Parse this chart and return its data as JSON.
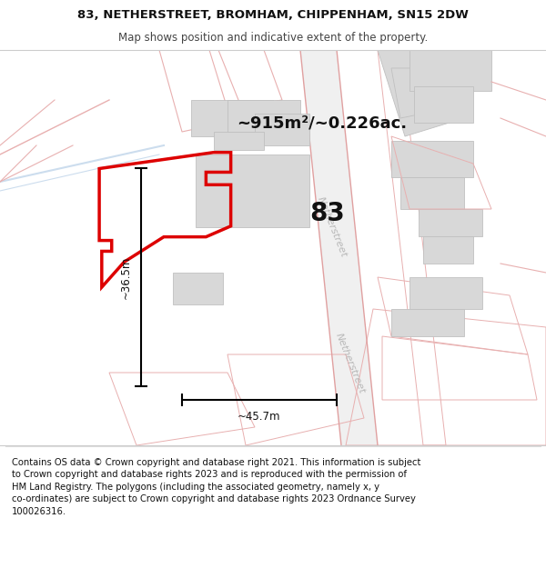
{
  "title_line1": "83, NETHERSTREET, BROMHAM, CHIPPENHAM, SN15 2DW",
  "title_line2": "Map shows position and indicative extent of the property.",
  "area_label": "~915m²/~0.226ac.",
  "plot_number": "83",
  "dim_width_label": "~45.7m",
  "dim_height_label": "~36.5m",
  "road_label": "Netherstreet",
  "footer_line1": "Contains OS data © Crown copyright and database right 2021. This information is subject",
  "footer_line2": "to Crown copyright and database rights 2023 and is reproduced with the permission of",
  "footer_line3": "HM Land Registry. The polygons (including the associated geometry, namely x, y",
  "footer_line4": "co-ordinates) are subject to Crown copyright and database rights 2023 Ordnance Survey",
  "footer_line5": "100026316.",
  "title_fontsize": 9.5,
  "subtitle_fontsize": 8.5,
  "footer_fontsize": 7.2,
  "area_fontsize": 13,
  "plot_num_fontsize": 20,
  "dim_fontsize": 8.5,
  "road_fontsize": 8.0,
  "plot_color": "#dd0000",
  "building_fill": "#d8d8d8",
  "building_edge": "#c0c0c0",
  "road_fill": "#efefef",
  "road_edge": "#e0a0a0",
  "road_line": "#e8b0b0",
  "bg_color": "#ffffff",
  "dim_color": "#111111",
  "road_text_color": "#b8b8b8",
  "text_color": "#111111",
  "comment_color": "#444444"
}
